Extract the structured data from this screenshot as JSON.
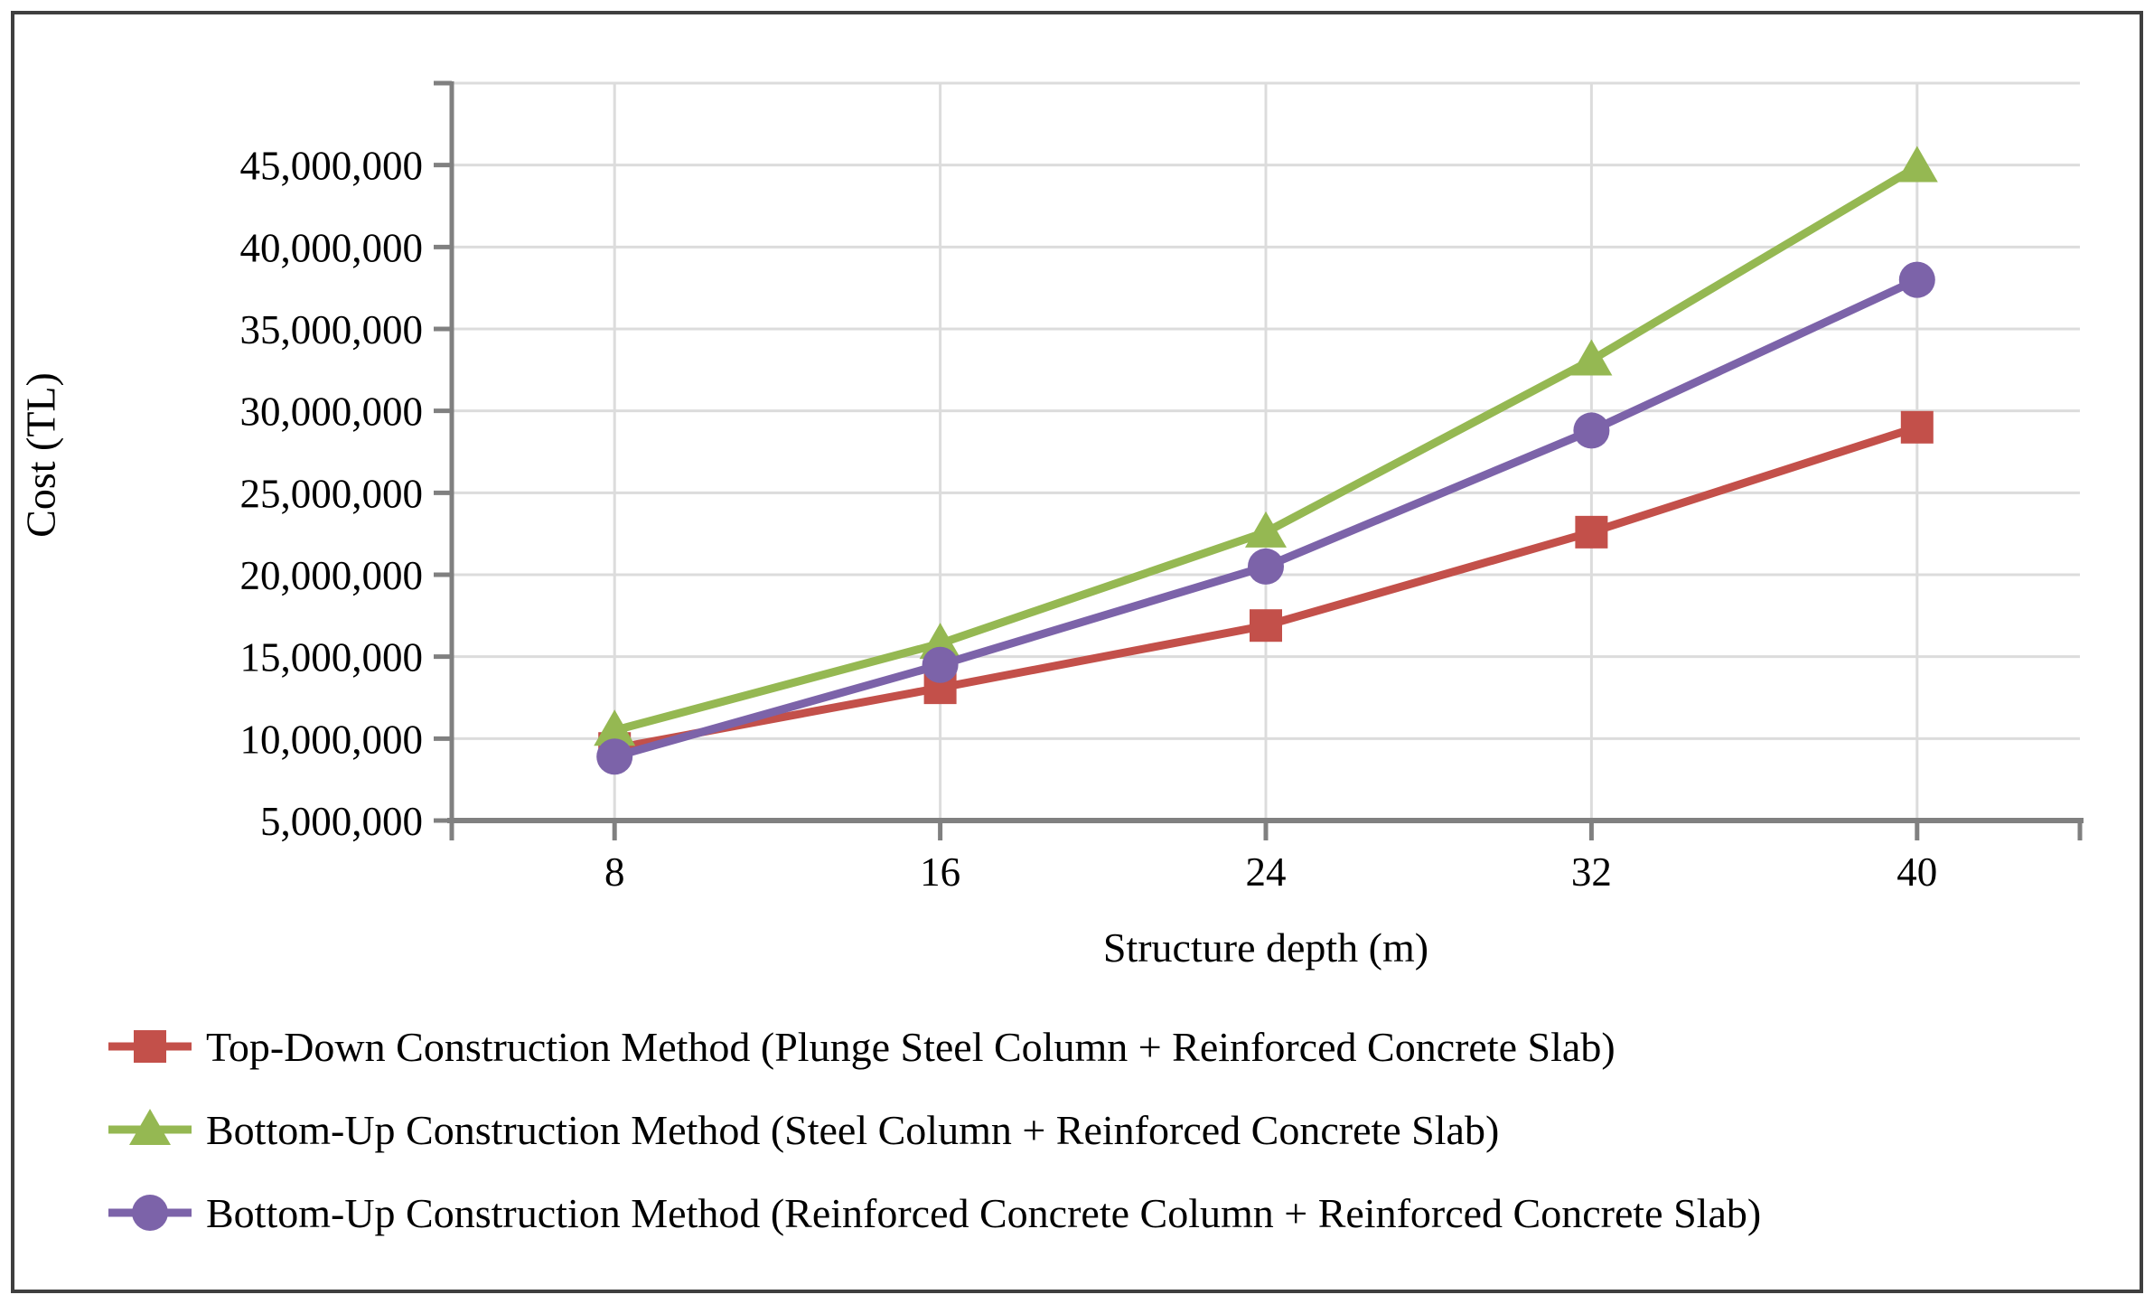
{
  "figure": {
    "type_note": "scatter-line chart with markers, white background, dark outer border",
    "border_color": "#3f3f3f",
    "gridline_color": "#dcdcdc",
    "axis_color": "#808080",
    "text_color": "#000000"
  },
  "chart_data": {
    "type": "line",
    "title": "",
    "xlabel": "Structure depth (m)",
    "ylabel": "Cost (TL)",
    "x": [
      8,
      16,
      24,
      32,
      40
    ],
    "x_tick_labels": [
      "8",
      "16",
      "24",
      "32",
      "40"
    ],
    "y_ticks": [
      5000000,
      10000000,
      15000000,
      20000000,
      25000000,
      30000000,
      35000000,
      40000000,
      45000000
    ],
    "y_tick_labels": [
      "5,000,000",
      "10,000,000",
      "15,000,000",
      "20,000,000",
      "25,000,000",
      "30,000,000",
      "35,000,000",
      "40,000,000",
      "45,000,000"
    ],
    "ylim": [
      5000000,
      50000000
    ],
    "grid": "horizontal-and-vertical",
    "legend_position": "bottom-left",
    "series": [
      {
        "id": "top-down-plunge-steel",
        "name": "Top-Down Construction Method (Plunge Steel Column + Reinforced Concrete Slab)",
        "color": "#c3504a",
        "marker": "square",
        "values": [
          9400000,
          13100000,
          16900000,
          22600000,
          29000000
        ]
      },
      {
        "id": "bottom-up-steel",
        "name": "Bottom-Up Construction Method (Steel Column + Reinforced Concrete Slab)",
        "color": "#95b852",
        "marker": "triangle",
        "values": [
          10500000,
          15800000,
          22600000,
          33100000,
          44900000
        ]
      },
      {
        "id": "bottom-up-rc",
        "name": "Bottom-Up Construction Method (Reinforced Concrete Column + Reinforced Concrete Slab)",
        "color": "#7c63a9",
        "marker": "circle",
        "values": [
          8900000,
          14500000,
          20500000,
          28800000,
          38000000
        ]
      }
    ]
  }
}
